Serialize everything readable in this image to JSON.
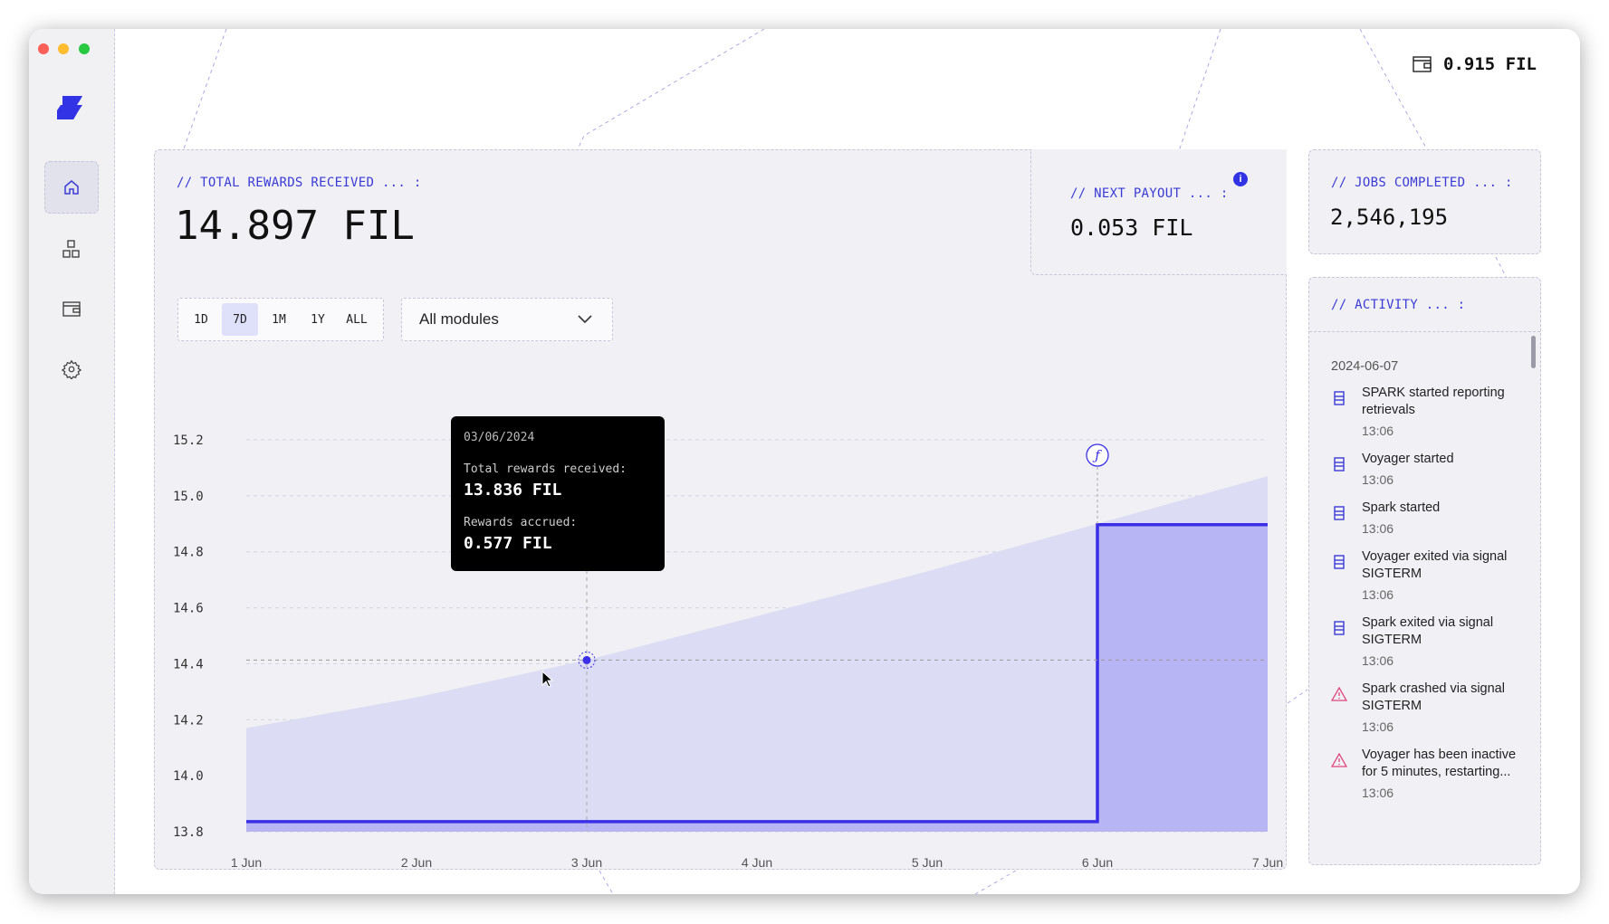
{
  "window": {
    "traffic_lights": [
      "#fe5f57",
      "#febc2e",
      "#28c840"
    ]
  },
  "sidebar": {
    "brand_color": "#3333e6",
    "items": [
      {
        "name": "home",
        "icon": "home-icon",
        "active": true
      },
      {
        "name": "modules",
        "icon": "grid-icon",
        "active": false
      },
      {
        "name": "wallet",
        "icon": "wallet-icon",
        "active": false
      },
      {
        "name": "settings",
        "icon": "gear-icon",
        "active": false
      }
    ]
  },
  "header": {
    "balance": "0.915 FIL",
    "balance_icon": "wallet-icon"
  },
  "rewards": {
    "label": "// TOTAL REWARDS RECEIVED ... :",
    "value": "14.897 FIL",
    "ranges": [
      "1D",
      "7D",
      "1M",
      "1Y",
      "ALL"
    ],
    "selected_range": "7D",
    "module_select": "All modules"
  },
  "next_payout": {
    "label": "// NEXT PAYOUT ... :",
    "value": "0.053 FIL",
    "info_icon": "info-icon"
  },
  "jobs": {
    "label": "// JOBS COMPLETED ... :",
    "value": "2,546,195"
  },
  "activity": {
    "label": "// ACTIVITY ... :",
    "date": "2024-06-07",
    "items": [
      {
        "type": "info",
        "text": "SPARK started reporting retrievals",
        "time": "13:06"
      },
      {
        "type": "info",
        "text": "Voyager started",
        "time": "13:06"
      },
      {
        "type": "info",
        "text": "Spark started",
        "time": "13:06"
      },
      {
        "type": "info",
        "text": "Voyager exited via signal SIGTERM",
        "time": "13:06"
      },
      {
        "type": "info",
        "text": "Spark exited via signal SIGTERM",
        "time": "13:06"
      },
      {
        "type": "warning",
        "text": "Spark crashed via signal SIGTERM",
        "time": "13:06"
      },
      {
        "type": "warning",
        "text": "Voyager has been inactive for 5 minutes, restarting...",
        "time": "13:06"
      }
    ]
  },
  "tooltip": {
    "date": "03/06/2024",
    "total_label": "Total rewards received:",
    "total_value": "13.836 FIL",
    "accrued_label": "Rewards accrued:",
    "accrued_value": "0.577 FIL"
  },
  "chart_data": {
    "type": "area",
    "categories": [
      "1 Jun",
      "2 Jun",
      "3 Jun",
      "4 Jun",
      "5 Jun",
      "6 Jun",
      "7 Jun"
    ],
    "yticks": [
      "13.8",
      "14.0",
      "14.2",
      "14.4",
      "14.6",
      "14.8",
      "15.0",
      "15.2"
    ],
    "ylim": [
      13.8,
      15.2
    ],
    "grid": true,
    "series": [
      {
        "kind": "area",
        "color": "#dcdcf4",
        "values": [
          14.17,
          14.28,
          14.413,
          14.57,
          14.73,
          14.9,
          15.07
        ]
      },
      {
        "kind": "step",
        "color": "#3a2fe6",
        "fill": "#b2b0f4",
        "values": [
          13.836,
          13.836,
          13.836,
          13.836,
          13.836,
          14.897,
          14.897
        ]
      }
    ],
    "highlight_index": 2,
    "payout_marker_index": 5
  }
}
